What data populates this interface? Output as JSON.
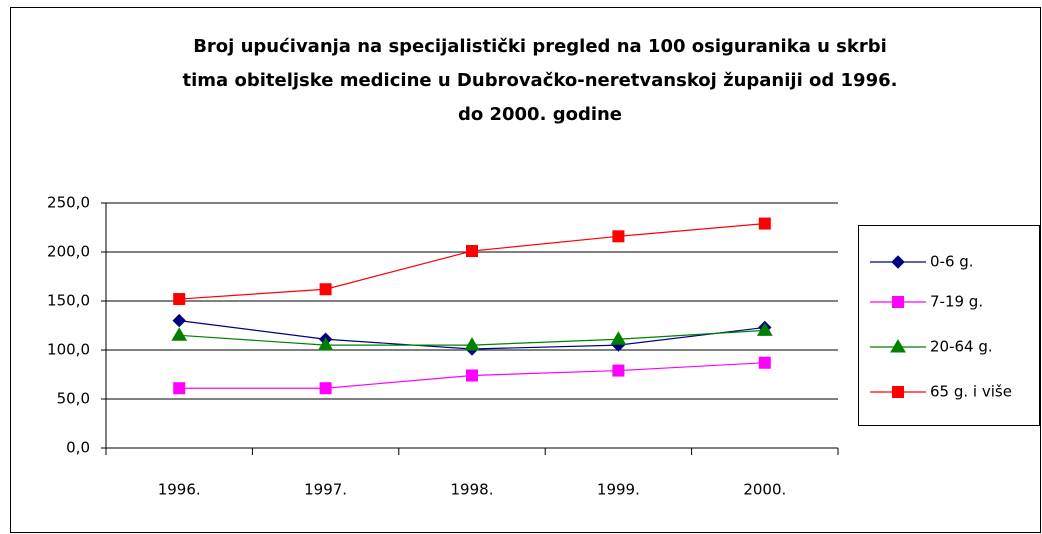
{
  "chart_data": {
    "type": "line",
    "title_lines": [
      "Broj upućivanja na specijalistički pregled na 100 osiguranika u skrbi",
      "tima obiteljske medicine u Dubrovačko-neretvanskoj županiji od 1996.",
      "do 2000. godine"
    ],
    "categories": [
      "1996.",
      "1997.",
      "1998.",
      "1999.",
      "2000."
    ],
    "series": [
      {
        "name": "0-6 g.",
        "color": "#000080",
        "marker": "diamond",
        "values": [
          130,
          111,
          101,
          105,
          123
        ]
      },
      {
        "name": "7-19 g.",
        "color": "#ff00ff",
        "marker": "square",
        "values": [
          61,
          61,
          74,
          79,
          87
        ]
      },
      {
        "name": "20-64 g.",
        "color": "#008000",
        "marker": "triangle",
        "values": [
          115,
          105,
          105,
          111,
          120
        ]
      },
      {
        "name": "65 g. i više",
        "color": "#ff0000",
        "marker": "square",
        "values": [
          152,
          162,
          201,
          216,
          229
        ]
      }
    ],
    "ylim": [
      0,
      250
    ],
    "yticks": [
      {
        "value": 0,
        "label": "0,0"
      },
      {
        "value": 50,
        "label": "50,0"
      },
      {
        "value": 100,
        "label": "100,0"
      },
      {
        "value": 150,
        "label": "150,0"
      },
      {
        "value": 200,
        "label": "200,0"
      },
      {
        "value": 250,
        "label": "250,0"
      }
    ],
    "grid": true,
    "legend": "right"
  }
}
